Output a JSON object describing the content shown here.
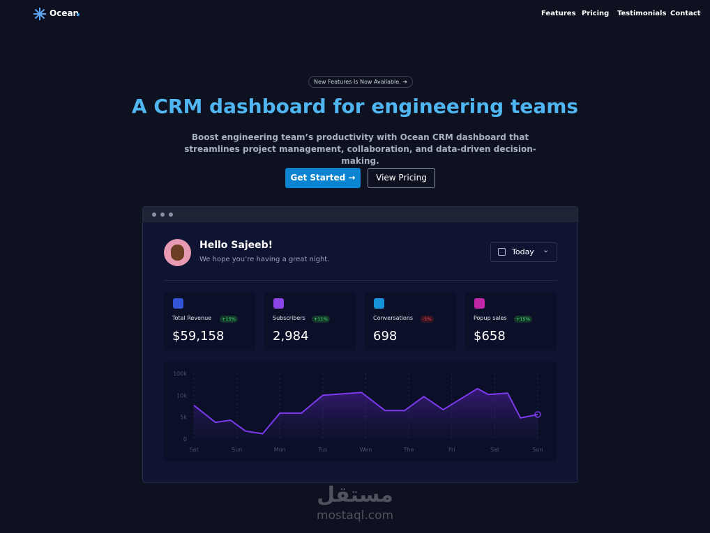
{
  "nav": {
    "brand": "Ocean",
    "links": [
      "Features",
      "Pricing",
      "Testimonials",
      "Contact"
    ]
  },
  "hero": {
    "badge": "New Features Is Now Available.",
    "title": "A CRM dashboard for engineering teams",
    "subtitle": "Boost engineering team’s productivity with Ocean CRM dashboard that streamlines project management, collaboration, and data-driven decision-making.",
    "buttons": [
      "Get Started →",
      "View Pricing"
    ]
  },
  "dashboard": {
    "greeting": "Hello Sajeeb!",
    "message": "We hope you’re having a great night.",
    "period": "Today",
    "stats": [
      {
        "label": "Total Revenue",
        "change": "+15%",
        "value": "$59,158"
      },
      {
        "label": "Subscribers",
        "change": "+11%",
        "value": "2,984"
      },
      {
        "label": "Conversations",
        "change": "-5%",
        "value": "698"
      },
      {
        "label": "Popup sales",
        "change": "+15%",
        "value": "$658"
      }
    ]
  },
  "chart_data": {
    "type": "area",
    "color": "#7c3aed",
    "x": [
      0,
      0.5,
      0.85,
      1.2,
      1.6,
      2.0,
      2.5,
      3.0,
      3.9,
      4.45,
      4.9,
      5.35,
      5.8,
      6.6,
      6.85,
      7.3,
      7.6,
      8.0
    ],
    "values": [
      7700,
      3800,
      4300,
      1800,
      1200,
      5900,
      5900,
      10000,
      21600,
      6500,
      6500,
      9700,
      6700,
      37700,
      12900,
      18700,
      4800,
      5600
    ],
    "xlim": [
      0,
      8
    ],
    "xticks": [
      {
        "value": 0,
        "label": "Sat"
      },
      {
        "value": 1,
        "label": "Sun"
      },
      {
        "value": 2,
        "label": "Mon"
      },
      {
        "value": 3,
        "label": "Tus"
      },
      {
        "value": 4,
        "label": "Wen"
      },
      {
        "value": 5,
        "label": "The"
      },
      {
        "value": 6,
        "label": "Fri"
      },
      {
        "value": 7,
        "label": "Sat"
      },
      {
        "value": 8,
        "label": "Sun"
      }
    ],
    "ylim": [
      0,
      100000
    ],
    "yticks": [
      0,
      {
        "value": 5000,
        "label": "5k"
      },
      {
        "value": 10000,
        "label": "10k"
      },
      {
        "value": 100000,
        "label": "100k"
      }
    ],
    "grid": true
  },
  "watermark": {
    "arabic": "مستقل",
    "latin": "mostaql.com"
  }
}
